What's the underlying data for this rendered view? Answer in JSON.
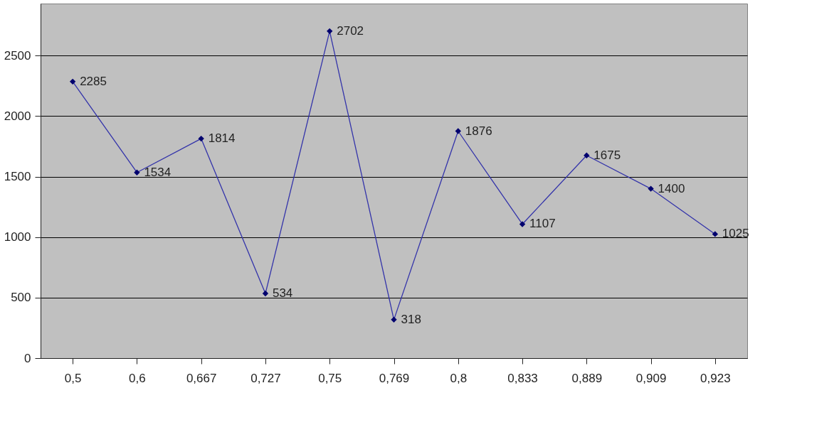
{
  "chart_data": {
    "type": "line",
    "categories": [
      "0,5",
      "0,6",
      "0,667",
      "0,727",
      "0,75",
      "0,769",
      "0,8",
      "0,833",
      "0,889",
      "0,909",
      "0,923"
    ],
    "series": [
      {
        "color": "#3333aa",
        "values": [
          2285,
          1534,
          1814,
          534,
          2702,
          318,
          1876,
          1107,
          1675,
          1400,
          1025
        ]
      }
    ],
    "ylim": [
      0,
      2930
    ],
    "yticks": [
      0,
      500,
      1000,
      1500,
      2000,
      2500
    ],
    "grid": "y",
    "marker": "diamond",
    "line_style": "solid",
    "data_labels": true
  }
}
